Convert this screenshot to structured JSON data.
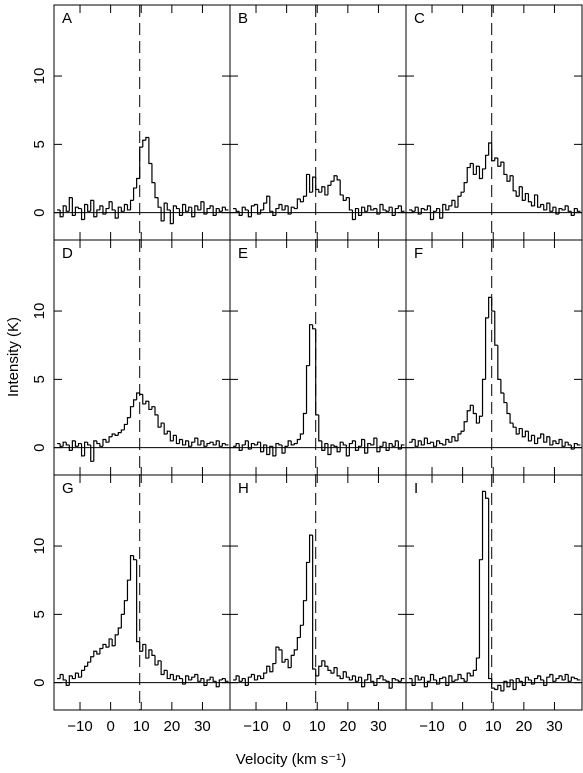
{
  "xlabel": "Velocity (km s⁻¹)",
  "ylabel": "Intensity (K)",
  "chart_data": [
    {
      "type": "line",
      "drawstyle": "steps-mid",
      "label": "A",
      "color": "#000000",
      "x": [
        -17,
        -16,
        -15,
        -14,
        -13,
        -12,
        -11,
        -10,
        -9,
        -8,
        -7,
        -6,
        -5,
        -4,
        -3,
        -2,
        -1,
        0,
        1,
        2,
        3,
        4,
        5,
        6,
        7,
        8,
        9,
        10,
        11,
        12,
        13,
        14,
        15,
        16,
        17,
        18,
        19,
        20,
        21,
        22,
        23,
        24,
        25,
        26,
        27,
        28,
        29,
        30,
        31,
        32,
        33,
        34,
        35,
        36,
        37,
        38
      ],
      "values": [
        0.2,
        -0.3,
        0.5,
        0.1,
        1.1,
        -0.2,
        0.4,
        0.3,
        -0.5,
        0.6,
        0.1,
        0.9,
        -0.3,
        0.2,
        0.5,
        -0.1,
        0.3,
        0.8,
        0.2,
        -0.4,
        0.4,
        0.1,
        0.6,
        0.2,
        0.9,
        1.8,
        2.5,
        4.8,
        5.3,
        5.5,
        3.6,
        2.2,
        1.1,
        0.4,
        -0.6,
        0.7,
        0.2,
        -0.8,
        0.5,
        0.3,
        -0.2,
        0.6,
        0.1,
        0.4,
        -0.3,
        0.5,
        0.2,
        0.8,
        -0.1,
        0.3,
        0.5,
        -0.2,
        0.3,
        0.1,
        0.4,
        0.2
      ],
      "xlim": [
        -18.5,
        39
      ],
      "ylim": [
        -2,
        15.2
      ],
      "xticks": [
        {
          "value": -10,
          "label": "−10"
        },
        0,
        10,
        20,
        30
      ],
      "yticks": [
        0,
        5,
        10
      ],
      "vline": 9.5,
      "hline": 0
    },
    {
      "type": "line",
      "drawstyle": "steps-mid",
      "label": "B",
      "color": "#000000",
      "x": [
        -17,
        -16,
        -15,
        -14,
        -13,
        -12,
        -11,
        -10,
        -9,
        -8,
        -7,
        -6,
        -5,
        -4,
        -3,
        -2,
        -1,
        0,
        1,
        2,
        3,
        4,
        5,
        6,
        7,
        8,
        9,
        10,
        11,
        12,
        13,
        14,
        15,
        16,
        17,
        18,
        19,
        20,
        21,
        22,
        23,
        24,
        25,
        26,
        27,
        28,
        29,
        30,
        31,
        32,
        33,
        34,
        35,
        36,
        37,
        38
      ],
      "values": [
        0.3,
        0.1,
        -0.2,
        0.4,
        0.2,
        -0.3,
        0.5,
        0.6,
        -0.1,
        0.2,
        0.7,
        1.2,
        0.1,
        -0.2,
        0.3,
        0.6,
        0.2,
        0.5,
        -0.1,
        0.4,
        0.3,
        1.0,
        0.8,
        1.2,
        2.8,
        1.5,
        2.6,
        1.7,
        1.5,
        1.9,
        1.3,
        2.0,
        2.3,
        2.7,
        2.4,
        1.3,
        0.9,
        1.1,
        0.2,
        -0.5,
        0.3,
        -0.2,
        0.4,
        0.1,
        0.5,
        0.2,
        0.3,
        -0.1,
        0.6,
        0.2,
        0.1,
        0.4,
        -0.2,
        0.3,
        0.5,
        0.1
      ],
      "xlim": [
        -18.5,
        39
      ],
      "ylim": [
        -2,
        15.2
      ],
      "xticks": [
        {
          "value": -10,
          "label": "−10"
        },
        0,
        10,
        20,
        30
      ],
      "yticks": [
        0,
        5,
        10
      ],
      "vline": 9.5,
      "hline": 0
    },
    {
      "type": "line",
      "drawstyle": "steps-mid",
      "label": "C",
      "color": "#000000",
      "x": [
        -17,
        -16,
        -15,
        -14,
        -13,
        -12,
        -11,
        -10,
        -9,
        -8,
        -7,
        -6,
        -5,
        -4,
        -3,
        -2,
        -1,
        0,
        1,
        2,
        3,
        4,
        5,
        6,
        7,
        8,
        9,
        10,
        11,
        12,
        13,
        14,
        15,
        16,
        17,
        18,
        19,
        20,
        21,
        22,
        23,
        24,
        25,
        26,
        27,
        28,
        29,
        30,
        31,
        32,
        33,
        34,
        35,
        36,
        37,
        38
      ],
      "values": [
        0.2,
        0.1,
        0.4,
        -0.1,
        0.3,
        0.2,
        0.5,
        -0.5,
        0.1,
        0.3,
        -0.4,
        0.6,
        0.2,
        0.5,
        0.9,
        0.4,
        1.2,
        1.5,
        2.2,
        3.3,
        3.6,
        2.8,
        3.4,
        2.5,
        3.2,
        4.2,
        5.1,
        3.8,
        4.0,
        3.4,
        3.7,
        2.8,
        2.3,
        2.7,
        1.6,
        1.2,
        1.9,
        0.9,
        1.4,
        0.8,
        0.5,
        1.3,
        0.4,
        0.6,
        0.2,
        0.7,
        0.1,
        0.4,
        -0.1,
        0.3,
        0.2,
        0.5,
        0.1,
        -0.2,
        0.3,
        0.1
      ],
      "xlim": [
        -18.5,
        39
      ],
      "ylim": [
        -2,
        15.2
      ],
      "xticks": [
        {
          "value": -10,
          "label": "−10"
        },
        0,
        10,
        20,
        30
      ],
      "yticks": [
        0,
        5,
        10
      ],
      "vline": 9.5,
      "hline": 0
    },
    {
      "type": "line",
      "drawstyle": "steps-mid",
      "label": "D",
      "color": "#000000",
      "x": [
        -17,
        -16,
        -15,
        -14,
        -13,
        -12,
        -11,
        -10,
        -9,
        -8,
        -7,
        -6,
        -5,
        -4,
        -3,
        -2,
        -1,
        0,
        1,
        2,
        3,
        4,
        5,
        6,
        7,
        8,
        9,
        10,
        11,
        12,
        13,
        14,
        15,
        16,
        17,
        18,
        19,
        20,
        21,
        22,
        23,
        24,
        25,
        26,
        27,
        28,
        29,
        30,
        31,
        32,
        33,
        34,
        35,
        36,
        37,
        38
      ],
      "values": [
        0.3,
        0.1,
        0.4,
        0.2,
        -0.2,
        0.5,
        0.1,
        0.3,
        -0.6,
        0.4,
        0.2,
        -1.0,
        0.5,
        0.3,
        0.1,
        0.6,
        0.4,
        0.8,
        1.0,
        0.9,
        1.1,
        1.3,
        1.7,
        2.2,
        3.0,
        3.5,
        4.0,
        3.9,
        3.2,
        3.4,
        2.8,
        3.0,
        2.4,
        1.5,
        1.8,
        1.0,
        1.2,
        0.5,
        0.9,
        0.3,
        0.6,
        0.2,
        0.5,
        0.1,
        0.4,
        0.7,
        0.2,
        0.5,
        0.1,
        0.3,
        0.4,
        0.2,
        0.5,
        0.1,
        0.3,
        0.2
      ],
      "xlim": [
        -18.5,
        39
      ],
      "ylim": [
        -2,
        15.2
      ],
      "xticks": [
        {
          "value": -10,
          "label": "−10"
        },
        0,
        10,
        20,
        30
      ],
      "yticks": [
        0,
        5,
        10
      ],
      "vline": 9.5,
      "hline": 0
    },
    {
      "type": "line",
      "drawstyle": "steps-mid",
      "label": "E",
      "color": "#000000",
      "x": [
        -17,
        -16,
        -15,
        -14,
        -13,
        -12,
        -11,
        -10,
        -9,
        -8,
        -7,
        -6,
        -5,
        -4,
        -3,
        -2,
        -1,
        0,
        1,
        2,
        3,
        4,
        5,
        6,
        7,
        8,
        9,
        10,
        11,
        12,
        13,
        14,
        15,
        16,
        17,
        18,
        19,
        20,
        21,
        22,
        23,
        24,
        25,
        26,
        27,
        28,
        29,
        30,
        31,
        32,
        33,
        34,
        35,
        36,
        37,
        38
      ],
      "values": [
        0.1,
        0.3,
        -0.2,
        0.2,
        0.5,
        -0.1,
        0.3,
        0.2,
        0.4,
        -0.3,
        0.2,
        -0.5,
        0.1,
        -0.6,
        0.3,
        0.2,
        -0.4,
        0.1,
        0.5,
        0.2,
        0.3,
        0.6,
        1.0,
        2.5,
        6.0,
        9.0,
        8.7,
        2.4,
        0.5,
        -0.2,
        0.3,
        -0.5,
        0.2,
        0.1,
        -0.3,
        0.4,
        0.2,
        -0.6,
        0.3,
        0.5,
        -0.2,
        0.1,
        0.6,
        -0.4,
        0.3,
        0.2,
        0.7,
        -0.3,
        0.1,
        0.4,
        -0.2,
        0.3,
        0.1,
        0.5,
        -0.1,
        0.2
      ],
      "xlim": [
        -18.5,
        39
      ],
      "ylim": [
        -2,
        15.2
      ],
      "xticks": [
        {
          "value": -10,
          "label": "−10"
        },
        0,
        10,
        20,
        30
      ],
      "yticks": [
        0,
        5,
        10
      ],
      "vline": 9.5,
      "hline": 0
    },
    {
      "type": "line",
      "drawstyle": "steps-mid",
      "label": "F",
      "color": "#000000",
      "x": [
        -17,
        -16,
        -15,
        -14,
        -13,
        -12,
        -11,
        -10,
        -9,
        -8,
        -7,
        -6,
        -5,
        -4,
        -3,
        -2,
        -1,
        0,
        1,
        2,
        3,
        4,
        5,
        6,
        7,
        8,
        9,
        10,
        11,
        12,
        13,
        14,
        15,
        16,
        17,
        18,
        19,
        20,
        21,
        22,
        23,
        24,
        25,
        26,
        27,
        28,
        29,
        30,
        31,
        32,
        33,
        34,
        35,
        36,
        37,
        38
      ],
      "values": [
        0.4,
        0.6,
        0.1,
        0.5,
        0.2,
        0.7,
        0.3,
        0.4,
        0.1,
        0.5,
        0.3,
        0.2,
        0.6,
        0.4,
        0.8,
        0.5,
        1.0,
        1.2,
        1.9,
        2.7,
        3.1,
        2.5,
        1.8,
        2.3,
        5.0,
        9.5,
        11.0,
        10.0,
        7.5,
        5.0,
        4.0,
        3.3,
        2.5,
        1.8,
        1.5,
        1.0,
        1.4,
        0.8,
        1.2,
        0.5,
        0.9,
        0.3,
        0.7,
        1.0,
        0.4,
        0.8,
        0.2,
        0.5,
        0.3,
        0.6,
        0.1,
        0.4,
        0.2,
        -0.1,
        0.3,
        0.2
      ],
      "xlim": [
        -18.5,
        39
      ],
      "ylim": [
        -2,
        15.2
      ],
      "xticks": [
        {
          "value": -10,
          "label": "−10"
        },
        0,
        10,
        20,
        30
      ],
      "yticks": [
        0,
        5,
        10
      ],
      "vline": 9.5,
      "hline": 0
    },
    {
      "type": "line",
      "drawstyle": "steps-mid",
      "label": "G",
      "color": "#000000",
      "x": [
        -17,
        -16,
        -15,
        -14,
        -13,
        -12,
        -11,
        -10,
        -9,
        -8,
        -7,
        -6,
        -5,
        -4,
        -3,
        -2,
        -1,
        0,
        1,
        2,
        3,
        4,
        5,
        6,
        7,
        8,
        9,
        10,
        11,
        12,
        13,
        14,
        15,
        16,
        17,
        18,
        19,
        20,
        21,
        22,
        23,
        24,
        25,
        26,
        27,
        28,
        29,
        30,
        31,
        32,
        33,
        34,
        35,
        36,
        37,
        38
      ],
      "values": [
        0.3,
        0.6,
        0.2,
        -0.2,
        0.5,
        0.3,
        0.7,
        0.4,
        0.9,
        1.2,
        1.5,
        1.9,
        2.3,
        2.1,
        2.5,
        2.8,
        2.6,
        3.2,
        2.7,
        3.5,
        4.0,
        5.0,
        6.0,
        7.5,
        9.3,
        9.0,
        3.0,
        2.3,
        2.8,
        1.8,
        2.4,
        2.0,
        1.3,
        1.6,
        0.6,
        0.9,
        0.3,
        0.6,
        0.2,
        0.5,
        0.3,
        -0.1,
        0.5,
        0.2,
        0.4,
        0.6,
        0.1,
        0.3,
        -0.2,
        0.2,
        0.4,
        0.1,
        -0.3,
        0.2,
        0.3,
        0.1
      ],
      "xlim": [
        -18.5,
        39
      ],
      "ylim": [
        -2,
        15.2
      ],
      "xticks": [
        {
          "value": -10,
          "label": "−10"
        },
        0,
        10,
        20,
        30
      ],
      "yticks": [
        0,
        5,
        10
      ],
      "vline": 9.5,
      "hline": 0
    },
    {
      "type": "line",
      "drawstyle": "steps-mid",
      "label": "H",
      "color": "#000000",
      "x": [
        -17,
        -16,
        -15,
        -14,
        -13,
        -12,
        -11,
        -10,
        -9,
        -8,
        -7,
        -6,
        -5,
        -4,
        -3,
        -2,
        -1,
        0,
        1,
        2,
        3,
        4,
        5,
        6,
        7,
        8,
        9,
        10,
        11,
        12,
        13,
        14,
        15,
        16,
        17,
        18,
        19,
        20,
        21,
        22,
        23,
        24,
        25,
        26,
        27,
        28,
        29,
        30,
        31,
        32,
        33,
        34,
        35,
        36,
        37,
        38
      ],
      "values": [
        0.2,
        0.5,
        0.1,
        0.3,
        -0.2,
        0.4,
        0.6,
        0.2,
        0.5,
        0.3,
        0.7,
        1.2,
        0.8,
        1.4,
        2.6,
        2.4,
        1.5,
        1.7,
        1.1,
        2.0,
        2.4,
        3.3,
        4.2,
        6.0,
        8.8,
        10.8,
        1.0,
        0.5,
        1.2,
        1.6,
        1.2,
        0.9,
        0.7,
        1.1,
        0.5,
        0.3,
        0.8,
        0.4,
        0.2,
        0.5,
        0.1,
        0.4,
        -0.3,
        0.2,
        0.6,
        0.1,
        -0.2,
        0.3,
        0.5,
        0.2,
        0.1,
        -0.4,
        0.3,
        0.2,
        0.1,
        0.3
      ],
      "xlim": [
        -18.5,
        39
      ],
      "ylim": [
        -2,
        15.2
      ],
      "xticks": [
        {
          "value": -10,
          "label": "−10"
        },
        0,
        10,
        20,
        30
      ],
      "yticks": [
        0,
        5,
        10
      ],
      "vline": 9.5,
      "hline": 0
    },
    {
      "type": "line",
      "drawstyle": "steps-mid",
      "label": "I",
      "color": "#000000",
      "x": [
        -17,
        -16,
        -15,
        -14,
        -13,
        -12,
        -11,
        -10,
        -9,
        -8,
        -7,
        -6,
        -5,
        -4,
        -3,
        -2,
        -1,
        0,
        1,
        2,
        3,
        4,
        5,
        6,
        7,
        8,
        9,
        10,
        11,
        12,
        13,
        14,
        15,
        16,
        17,
        18,
        19,
        20,
        21,
        22,
        23,
        24,
        25,
        26,
        27,
        28,
        29,
        30,
        31,
        32,
        33,
        34,
        35,
        36,
        37,
        38
      ],
      "values": [
        0.3,
        -0.2,
        0.5,
        0.2,
        0.4,
        -0.3,
        0.1,
        0.6,
        0.2,
        -0.1,
        0.3,
        0.4,
        -0.2,
        0.5,
        0.1,
        0.2,
        0.6,
        0.3,
        0.1,
        0.7,
        0.5,
        0.9,
        1.8,
        9.0,
        14.0,
        13.5,
        0.3,
        -0.4,
        -0.5,
        -0.2,
        -0.6,
        0.1,
        -0.3,
        0.2,
        -0.5,
        0.3,
        0.1,
        -0.2,
        0.4,
        0.2,
        -0.1,
        0.3,
        0.5,
        0.2,
        -0.2,
        0.4,
        0.6,
        0.1,
        0.3,
        0.5,
        0.2,
        0.6,
        0.1,
        0.4,
        0.3,
        0.2
      ],
      "xlim": [
        -18.5,
        39
      ],
      "ylim": [
        -2,
        15.2
      ],
      "xticks": [
        {
          "value": -10,
          "label": "−10"
        },
        0,
        10,
        20,
        30
      ],
      "yticks": [
        0,
        5,
        10
      ],
      "vline": 9.5,
      "hline": 0
    }
  ]
}
